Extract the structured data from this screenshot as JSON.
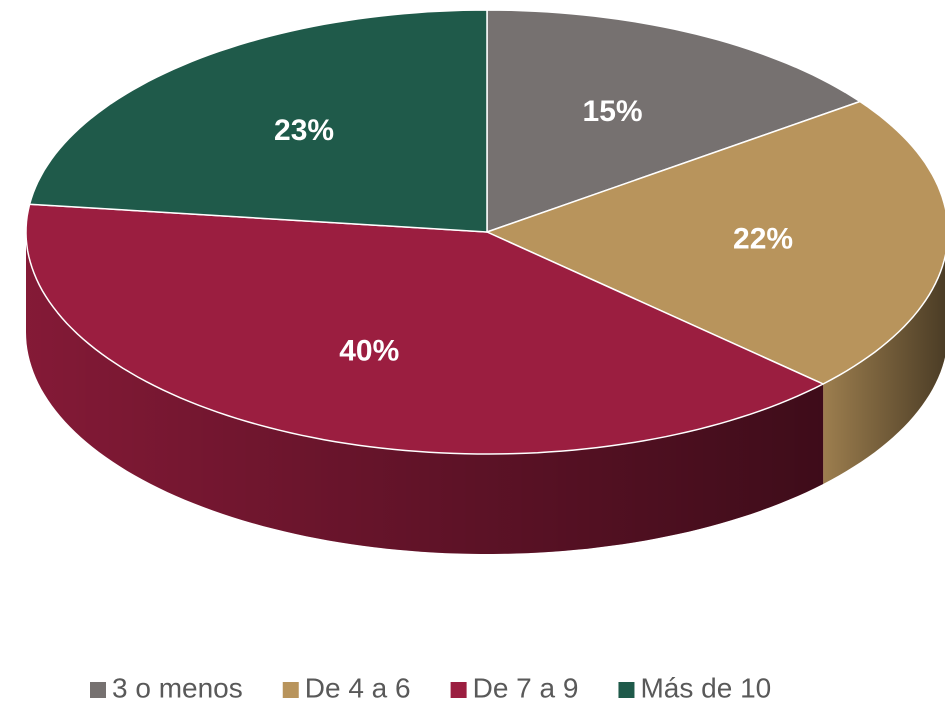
{
  "chart_data": {
    "type": "pie",
    "categories": [
      "3 o menos",
      "De 4 a 6",
      "De 7 a 9",
      "Más de 10"
    ],
    "values": [
      15,
      22,
      40,
      23
    ],
    "value_labels": [
      "15%",
      "22%",
      "40%",
      "23%"
    ],
    "colors": [
      "#767170",
      "#b8945c",
      "#9b1e40",
      "#1f5a4a"
    ],
    "legend": "bottom"
  }
}
